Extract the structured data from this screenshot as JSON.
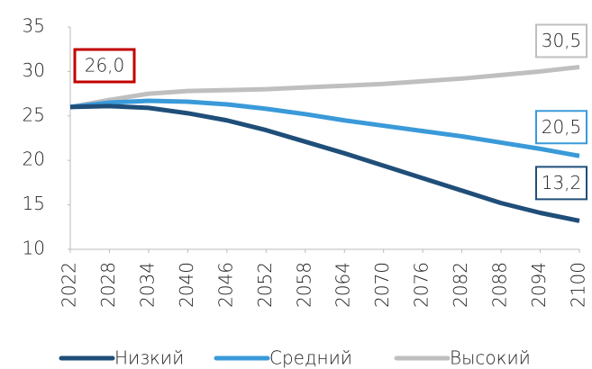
{
  "chart_data": {
    "type": "line",
    "x": [
      2022,
      2028,
      2034,
      2040,
      2046,
      2052,
      2058,
      2064,
      2070,
      2076,
      2082,
      2088,
      2094,
      2100
    ],
    "xlim": [
      2022,
      2100
    ],
    "xticks": [
      2022,
      2028,
      2034,
      2040,
      2046,
      2052,
      2058,
      2064,
      2070,
      2076,
      2082,
      2088,
      2094,
      2100
    ],
    "ylim": [
      10,
      35
    ],
    "yticks": [
      10,
      15,
      20,
      25,
      30,
      35
    ],
    "start_label_color": "#c00000",
    "series": [
      {
        "name": "Низкий",
        "color": "#1f4e79",
        "values": [
          26.0,
          26.1,
          25.9,
          25.3,
          24.5,
          23.4,
          22.1,
          20.8,
          19.4,
          18.0,
          16.6,
          15.2,
          14.1,
          13.2
        ],
        "value_labels": [
          "26,0",
          null,
          null,
          null,
          null,
          null,
          null,
          null,
          null,
          null,
          null,
          null,
          null,
          "13,2"
        ]
      },
      {
        "name": "Средний",
        "color": "#3a9ad9",
        "values": [
          26.0,
          26.5,
          26.7,
          26.6,
          26.3,
          25.8,
          25.2,
          24.5,
          23.9,
          23.3,
          22.7,
          22.0,
          21.3,
          20.5
        ],
        "value_labels": [
          null,
          null,
          null,
          null,
          null,
          null,
          null,
          null,
          null,
          null,
          null,
          null,
          null,
          "20,5"
        ]
      },
      {
        "name": "Высокий",
        "color": "#bfbfbf",
        "values": [
          26.0,
          26.8,
          27.5,
          27.8,
          27.9,
          28.0,
          28.2,
          28.4,
          28.6,
          28.9,
          29.2,
          29.6,
          30.0,
          30.5
        ],
        "value_labels": [
          null,
          null,
          null,
          null,
          null,
          null,
          null,
          null,
          null,
          null,
          null,
          null,
          null,
          "30,5"
        ]
      }
    ]
  }
}
